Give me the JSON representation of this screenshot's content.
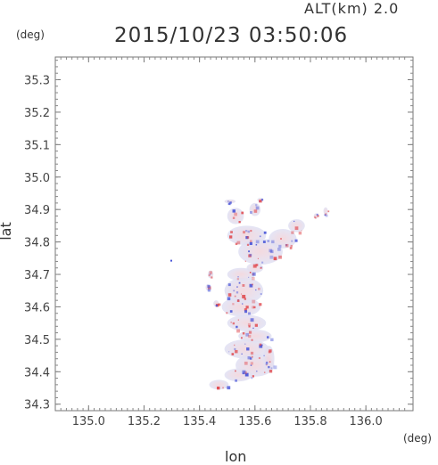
{
  "header": {
    "alt_label": "ALT(km)  2.0",
    "timestamp": "2015/10/23 03:50:06"
  },
  "chart_data": {
    "type": "heatmap",
    "title": "2015/10/23 03:50:06",
    "xlabel": "lon",
    "ylabel": "lat",
    "x_unit": "(deg)",
    "y_unit": "(deg)",
    "xlim": [
      134.88,
      136.17
    ],
    "ylim": [
      34.28,
      35.37
    ],
    "x_ticks": [
      135.0,
      135.2,
      135.4,
      135.6,
      135.8,
      136.0
    ],
    "x_tick_labels": [
      "135.0",
      "135.2",
      "135.4",
      "135.6",
      "135.8",
      "136.0"
    ],
    "y_ticks": [
      34.3,
      34.4,
      34.5,
      34.6,
      34.7,
      34.8,
      34.9,
      35.0,
      35.1,
      35.2,
      35.3
    ],
    "y_tick_labels": [
      "34.3",
      "34.4",
      "34.5",
      "34.6",
      "34.7",
      "34.8",
      "34.9",
      "35.0",
      "35.1",
      "35.2",
      "35.3"
    ],
    "grid": false,
    "colors": {
      "positive": "#e0474c",
      "negative": "#4a56d8",
      "frame": "#777777"
    },
    "blobs": [
      {
        "lon": 135.47,
        "lat": 34.36,
        "rlon": 0.035,
        "rlat": 0.015
      },
      {
        "lon": 135.54,
        "lat": 34.39,
        "rlon": 0.05,
        "rlat": 0.02
      },
      {
        "lon": 135.6,
        "lat": 34.42,
        "rlon": 0.07,
        "rlat": 0.035
      },
      {
        "lon": 135.57,
        "lat": 34.47,
        "rlon": 0.08,
        "rlat": 0.03
      },
      {
        "lon": 135.6,
        "lat": 34.51,
        "rlon": 0.06,
        "rlat": 0.02
      },
      {
        "lon": 135.57,
        "lat": 34.55,
        "rlon": 0.07,
        "rlat": 0.025
      },
      {
        "lon": 135.55,
        "lat": 34.6,
        "rlon": 0.07,
        "rlat": 0.03
      },
      {
        "lon": 135.56,
        "lat": 34.65,
        "rlon": 0.07,
        "rlat": 0.04
      },
      {
        "lon": 135.55,
        "lat": 34.7,
        "rlon": 0.05,
        "rlat": 0.02
      },
      {
        "lon": 135.6,
        "lat": 34.72,
        "rlon": 0.03,
        "rlat": 0.015
      },
      {
        "lon": 135.62,
        "lat": 34.77,
        "rlon": 0.08,
        "rlat": 0.04
      },
      {
        "lon": 135.57,
        "lat": 34.82,
        "rlon": 0.07,
        "rlat": 0.03
      },
      {
        "lon": 135.7,
        "lat": 34.81,
        "rlon": 0.05,
        "rlat": 0.03
      },
      {
        "lon": 135.75,
        "lat": 34.85,
        "rlon": 0.03,
        "rlat": 0.02
      },
      {
        "lon": 135.53,
        "lat": 34.88,
        "rlon": 0.03,
        "rlat": 0.025
      },
      {
        "lon": 135.6,
        "lat": 34.9,
        "rlon": 0.02,
        "rlat": 0.02
      },
      {
        "lon": 135.51,
        "lat": 34.925,
        "rlon": 0.02,
        "rlat": 0.006
      },
      {
        "lon": 135.62,
        "lat": 34.93,
        "rlon": 0.012,
        "rlat": 0.006
      },
      {
        "lon": 135.855,
        "lat": 34.895,
        "rlon": 0.008,
        "rlat": 0.012
      },
      {
        "lon": 135.82,
        "lat": 34.88,
        "rlon": 0.008,
        "rlat": 0.008
      },
      {
        "lon": 135.44,
        "lat": 34.7,
        "rlon": 0.01,
        "rlat": 0.012
      },
      {
        "lon": 135.43,
        "lat": 34.66,
        "rlon": 0.008,
        "rlat": 0.01
      },
      {
        "lon": 135.46,
        "lat": 34.61,
        "rlon": 0.01,
        "rlat": 0.01
      },
      {
        "lon": 135.65,
        "lat": 34.44,
        "rlon": 0.02,
        "rlat": 0.04
      }
    ]
  }
}
